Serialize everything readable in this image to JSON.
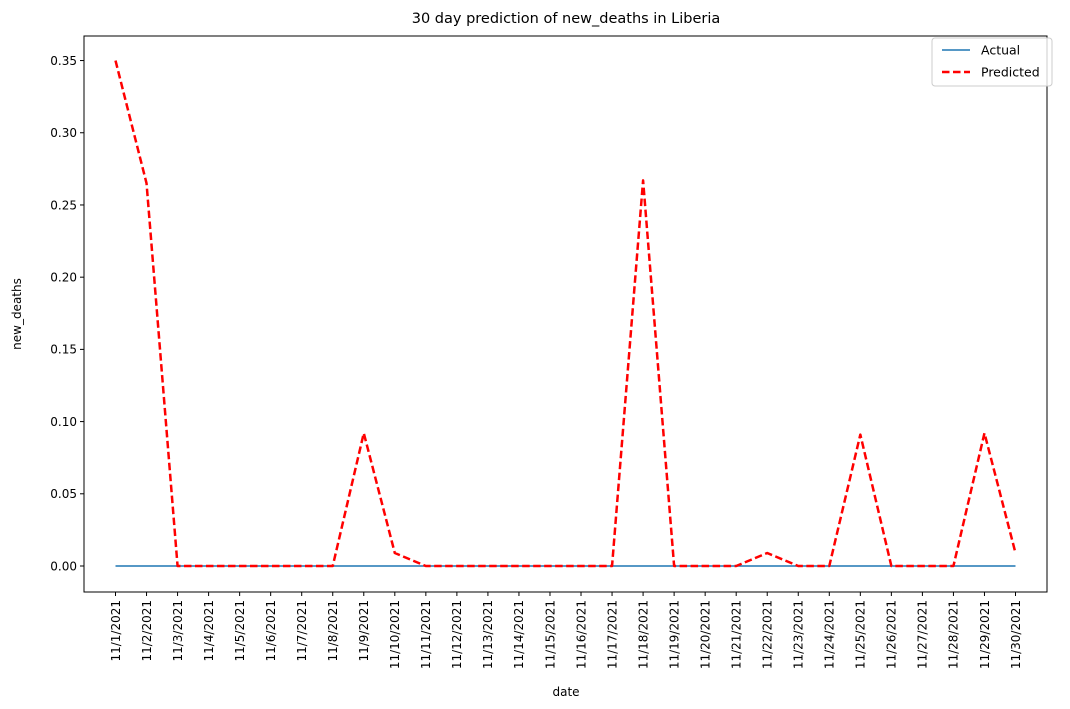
{
  "chart_data": {
    "type": "line",
    "title": "30 day prediction of new_deaths in Liberia",
    "xlabel": "date",
    "ylabel": "new_deaths",
    "categories": [
      "11/1/2021",
      "11/2/2021",
      "11/3/2021",
      "11/4/2021",
      "11/5/2021",
      "11/6/2021",
      "11/7/2021",
      "11/8/2021",
      "11/9/2021",
      "11/10/2021",
      "11/11/2021",
      "11/12/2021",
      "11/13/2021",
      "11/14/2021",
      "11/15/2021",
      "11/16/2021",
      "11/17/2021",
      "11/18/2021",
      "11/19/2021",
      "11/20/2021",
      "11/21/2021",
      "11/22/2021",
      "11/23/2021",
      "11/24/2021",
      "11/25/2021",
      "11/26/2021",
      "11/27/2021",
      "11/28/2021",
      "11/29/2021",
      "11/30/2021"
    ],
    "ylim": [
      -0.018,
      0.367
    ],
    "yticks": [
      0.0,
      0.05,
      0.1,
      0.15,
      0.2,
      0.25,
      0.3,
      0.35
    ],
    "ytick_labels": [
      "0.00",
      "0.05",
      "0.10",
      "0.15",
      "0.20",
      "0.25",
      "0.30",
      "0.35"
    ],
    "grid": false,
    "legend_position": "top-right",
    "series": [
      {
        "name": "Actual",
        "color": "#1f77b4",
        "style": "solid",
        "values": [
          0,
          0,
          0,
          0,
          0,
          0,
          0,
          0,
          0,
          0,
          0,
          0,
          0,
          0,
          0,
          0,
          0,
          0,
          0,
          0,
          0,
          0,
          0,
          0,
          0,
          0,
          0,
          0,
          0,
          0
        ]
      },
      {
        "name": "Predicted",
        "color": "#ff0000",
        "style": "dashed",
        "values": [
          0.35,
          0.265,
          0,
          0,
          0,
          0,
          0,
          0,
          0.092,
          0.009,
          0,
          0,
          0,
          0,
          0,
          0,
          0,
          0.267,
          0,
          0,
          0,
          0.009,
          0,
          0,
          0.091,
          0,
          0,
          0,
          0.092,
          0.009
        ]
      }
    ]
  }
}
